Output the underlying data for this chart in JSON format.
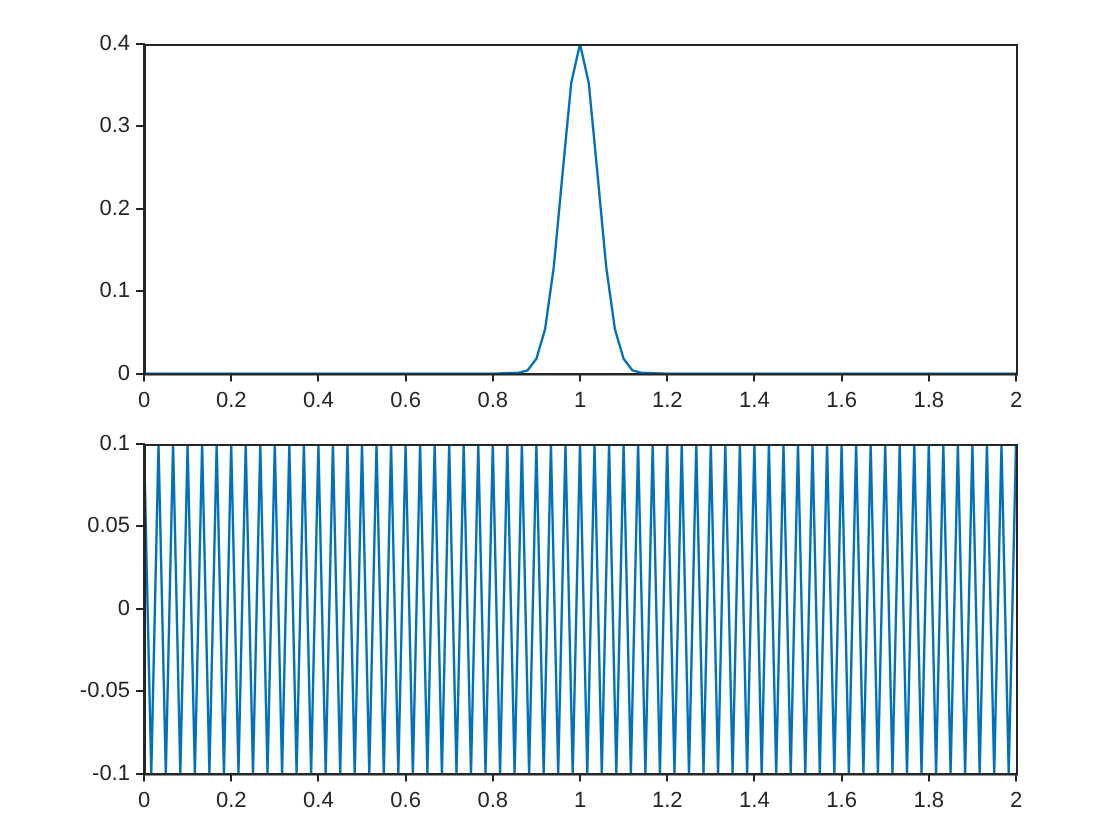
{
  "chart_data": [
    {
      "type": "line",
      "x": [
        0,
        0.8,
        0.86,
        0.88,
        0.9,
        0.92,
        0.94,
        0.96,
        0.98,
        1,
        1.02,
        1.04,
        1.06,
        1.08,
        1.1,
        1.12,
        1.14,
        1.2,
        2
      ],
      "series": [
        {
          "color": "#0072bd",
          "values": [
            0,
            0,
            0.001,
            0.004,
            0.018,
            0.054,
            0.13,
            0.243,
            0.353,
            0.4,
            0.353,
            0.243,
            0.13,
            0.054,
            0.018,
            0.004,
            0.001,
            0,
            0
          ]
        }
      ],
      "xlim": [
        0,
        2
      ],
      "xticks": [
        0,
        0.2,
        0.4,
        0.6,
        0.8,
        1,
        1.2,
        1.4,
        1.6,
        1.8,
        2
      ],
      "ylim": [
        0,
        0.4
      ],
      "yticks": [
        0,
        0.1,
        0.2,
        0.3,
        0.4
      ],
      "grid": false,
      "legend": false,
      "marker": "none",
      "line_style": "solid"
    },
    {
      "type": "line",
      "x": [
        0,
        0.0167,
        0.0333,
        0.05,
        0.0667,
        0.0833,
        0.1,
        0.1167,
        0.1333,
        0.15,
        0.1667,
        0.1833,
        0.2,
        0.2167,
        0.2333,
        0.25,
        0.2667,
        0.2833,
        0.3,
        0.3167,
        0.3333,
        0.35,
        0.3667,
        0.3833,
        0.4,
        0.4167,
        0.4333,
        0.45,
        0.4667,
        0.4833,
        0.5,
        0.5167,
        0.5333,
        0.55,
        0.5667,
        0.5833,
        0.6,
        0.6167,
        0.6333,
        0.65,
        0.6667,
        0.6833,
        0.7,
        0.7167,
        0.7333,
        0.75,
        0.7667,
        0.7833,
        0.8,
        0.8167,
        0.8333,
        0.85,
        0.8667,
        0.8833,
        0.9,
        0.9167,
        0.9333,
        0.95,
        0.9667,
        0.9833,
        1,
        1.0167,
        1.0333,
        1.05,
        1.0667,
        1.0833,
        1.1,
        1.1167,
        1.1333,
        1.15,
        1.1667,
        1.1833,
        1.2,
        1.2167,
        1.2333,
        1.25,
        1.2667,
        1.2833,
        1.3,
        1.3167,
        1.3333,
        1.35,
        1.3667,
        1.3833,
        1.4,
        1.4167,
        1.4333,
        1.45,
        1.4667,
        1.4833,
        1.5,
        1.5167,
        1.5333,
        1.55,
        1.5667,
        1.5833,
        1.6,
        1.6167,
        1.6333,
        1.65,
        1.6667,
        1.6833,
        1.7,
        1.7167,
        1.7333,
        1.75,
        1.7667,
        1.7833,
        1.8,
        1.8167,
        1.8333,
        1.85,
        1.8667,
        1.8833,
        1.9,
        1.9167,
        1.9333,
        1.95,
        1.9667,
        1.9833,
        2
      ],
      "series": [
        {
          "color": "#0072bd",
          "values": [
            0.1,
            -0.1,
            0.1,
            -0.1,
            0.1,
            -0.1,
            0.1,
            -0.1,
            0.1,
            -0.1,
            0.1,
            -0.1,
            0.1,
            -0.1,
            0.1,
            -0.1,
            0.1,
            -0.1,
            0.1,
            -0.1,
            0.1,
            -0.1,
            0.1,
            -0.1,
            0.1,
            -0.1,
            0.1,
            -0.1,
            0.1,
            -0.1,
            0.1,
            -0.1,
            0.1,
            -0.1,
            0.1,
            -0.1,
            0.1,
            -0.1,
            0.1,
            -0.1,
            0.1,
            -0.1,
            0.1,
            -0.1,
            0.1,
            -0.1,
            0.1,
            -0.1,
            0.1,
            -0.1,
            0.1,
            -0.1,
            0.1,
            -0.1,
            0.1,
            -0.1,
            0.1,
            -0.1,
            0.1,
            -0.1,
            0.1,
            -0.1,
            0.1,
            -0.1,
            0.1,
            -0.1,
            0.1,
            -0.1,
            0.1,
            -0.1,
            0.1,
            -0.1,
            0.1,
            -0.1,
            0.1,
            -0.1,
            0.1,
            -0.1,
            0.1,
            -0.1,
            0.1,
            -0.1,
            0.1,
            -0.1,
            0.1,
            -0.1,
            0.1,
            -0.1,
            0.1,
            -0.1,
            0.1,
            -0.1,
            0.1,
            -0.1,
            0.1,
            -0.1,
            0.1,
            -0.1,
            0.1,
            -0.1,
            0.1,
            -0.1,
            0.1,
            -0.1,
            0.1,
            -0.1,
            0.1,
            -0.1,
            0.1,
            -0.1,
            0.1,
            -0.1,
            0.1,
            -0.1,
            0.1,
            -0.1,
            0.1,
            -0.1,
            0.1,
            -0.1,
            0.1
          ]
        }
      ],
      "xlim": [
        0,
        2
      ],
      "xticks": [
        0,
        0.2,
        0.4,
        0.6,
        0.8,
        1,
        1.2,
        1.4,
        1.6,
        1.8,
        2
      ],
      "ylim": [
        -0.1,
        0.1
      ],
      "yticks": [
        -0.1,
        -0.05,
        0,
        0.05,
        0.1
      ],
      "grid": false,
      "legend": false,
      "marker": "none",
      "line_style": "solid"
    }
  ]
}
